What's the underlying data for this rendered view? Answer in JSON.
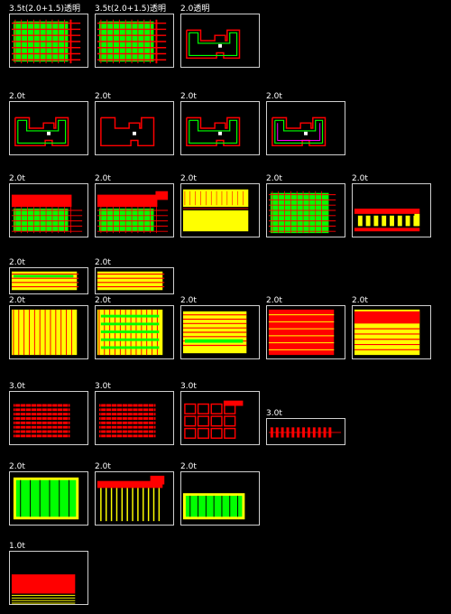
{
  "thumbnails": [
    {
      "label": "3.5t(2.0+1.5)透明",
      "pattern": "green-grid"
    },
    {
      "label": "3.5t(2.0+1.5)透明",
      "pattern": "green-grid"
    },
    {
      "label": "2.0透明",
      "pattern": "plan-green"
    },
    {
      "label": "2.0t",
      "pattern": "plan-green"
    },
    {
      "label": "2.0t",
      "pattern": "plan-red"
    },
    {
      "label": "2.0t",
      "pattern": "plan-green"
    },
    {
      "label": "2.0t",
      "pattern": "plan-green-mag"
    },
    {
      "label": "2.0t",
      "pattern": "red-top-green"
    },
    {
      "label": "2.0t",
      "pattern": "red-top-green2"
    },
    {
      "label": "2.0t",
      "pattern": "yellow-blocks"
    },
    {
      "label": "2.0t",
      "pattern": "green-grid-small"
    },
    {
      "label": "2.0t",
      "pattern": "red-mixed"
    },
    {
      "label": "2.0t",
      "pattern": "yellow-strip"
    },
    {
      "label": "2.0t",
      "pattern": "yellow-strip2"
    },
    {
      "label": "2.0t",
      "pattern": "yellow-grid"
    },
    {
      "label": "2.0t",
      "pattern": "yellow-grid-green"
    },
    {
      "label": "2.0t",
      "pattern": "yellow-bands"
    },
    {
      "label": "2.0t",
      "pattern": "red-yellow-rows"
    },
    {
      "label": "2.0t",
      "pattern": "red-yellow-bands"
    },
    {
      "label": "3.0t",
      "pattern": "red-stack"
    },
    {
      "label": "3.0t",
      "pattern": "red-stack"
    },
    {
      "label": "3.0t",
      "pattern": "red-plan"
    },
    {
      "label": "3.0t",
      "pattern": "red-row"
    },
    {
      "label": "2.0t",
      "pattern": "green-frame"
    },
    {
      "label": "2.0t",
      "pattern": "red-frame"
    },
    {
      "label": "2.0t",
      "pattern": "green-frame2"
    },
    {
      "label": "1.0t",
      "pattern": "red-bottom"
    }
  ]
}
